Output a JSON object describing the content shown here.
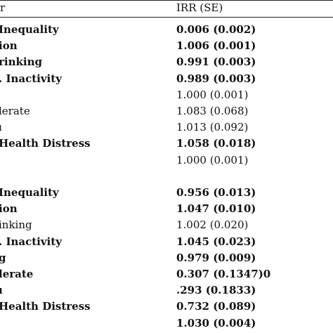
{
  "header": {
    "left": "r",
    "right": "IRR (SE)"
  },
  "section1": [
    {
      "label": "Inequality",
      "value": "0.006 (0.002)",
      "bold": true
    },
    {
      "label": "ion",
      "value": "1.006 (0.001)",
      "bold": true
    },
    {
      "label": "rinking",
      "value": "0.991 (0.003)",
      "bold": true
    },
    {
      "label": ". Inactivity",
      "value": "0.989 (0.003)",
      "bold": true
    },
    {
      "label": "",
      "value": "1.000 (0.001)",
      "bold": false
    },
    {
      "label": "lerate",
      "value": "1.083 (0.068)",
      "bold": false
    },
    {
      "label": "ı",
      "value": "1.013 (0.092)",
      "bold": false
    },
    {
      "label": "Health Distress",
      "value": "1.058 (0.018)",
      "bold": true
    },
    {
      "label": "",
      "value": "1.000 (0.001)",
      "bold": false
    }
  ],
  "section2": [
    {
      "label": "Inequality",
      "value": "0.956 (0.013)",
      "bold": true
    },
    {
      "label": "ion",
      "value": "1.047 (0.010)",
      "bold": true
    },
    {
      "label": "inking",
      "value": "1.002 (0.020)",
      "bold": false
    },
    {
      "label": ". Inactivity",
      "value": "1.045 (0.023)",
      "bold": true
    },
    {
      "label": "g",
      "value": "0.979 (0.009)",
      "bold": true
    },
    {
      "label": "lerate",
      "value": "0.307 (0.1347)0",
      "bold": true
    },
    {
      "label": "ı",
      "value": ".293 (0.1833)",
      "bold": true
    },
    {
      "label": "Health Distress",
      "value": "0.732 (0.089)",
      "bold": true
    },
    {
      "label": "",
      "value": "1.030 (0.004)",
      "bold": true
    }
  ]
}
